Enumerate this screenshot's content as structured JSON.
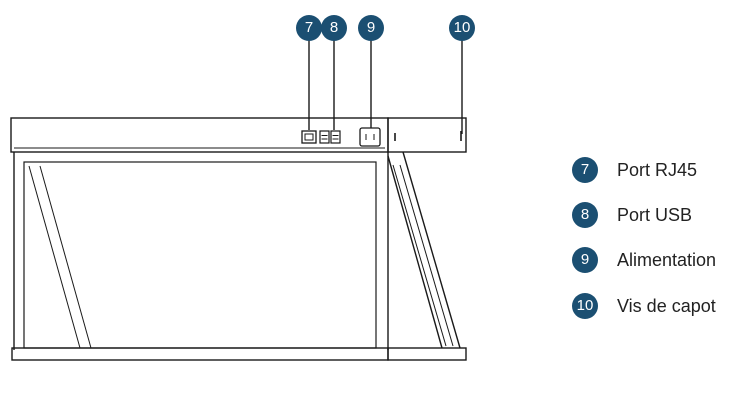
{
  "callouts": [
    {
      "number": "7",
      "label": "Port RJ45",
      "target": "rj45-port"
    },
    {
      "number": "8",
      "label": "Port USB",
      "target": "usb-ports"
    },
    {
      "number": "9",
      "label": "Alimentation",
      "target": "power-inlet"
    },
    {
      "number": "10",
      "label": "Vis de capot",
      "target": "cover-screw"
    }
  ],
  "colors": {
    "badge": "#1b4f72",
    "badge_text": "#ffffff",
    "outline": "#1a1a1a",
    "label_text": "#222222"
  }
}
